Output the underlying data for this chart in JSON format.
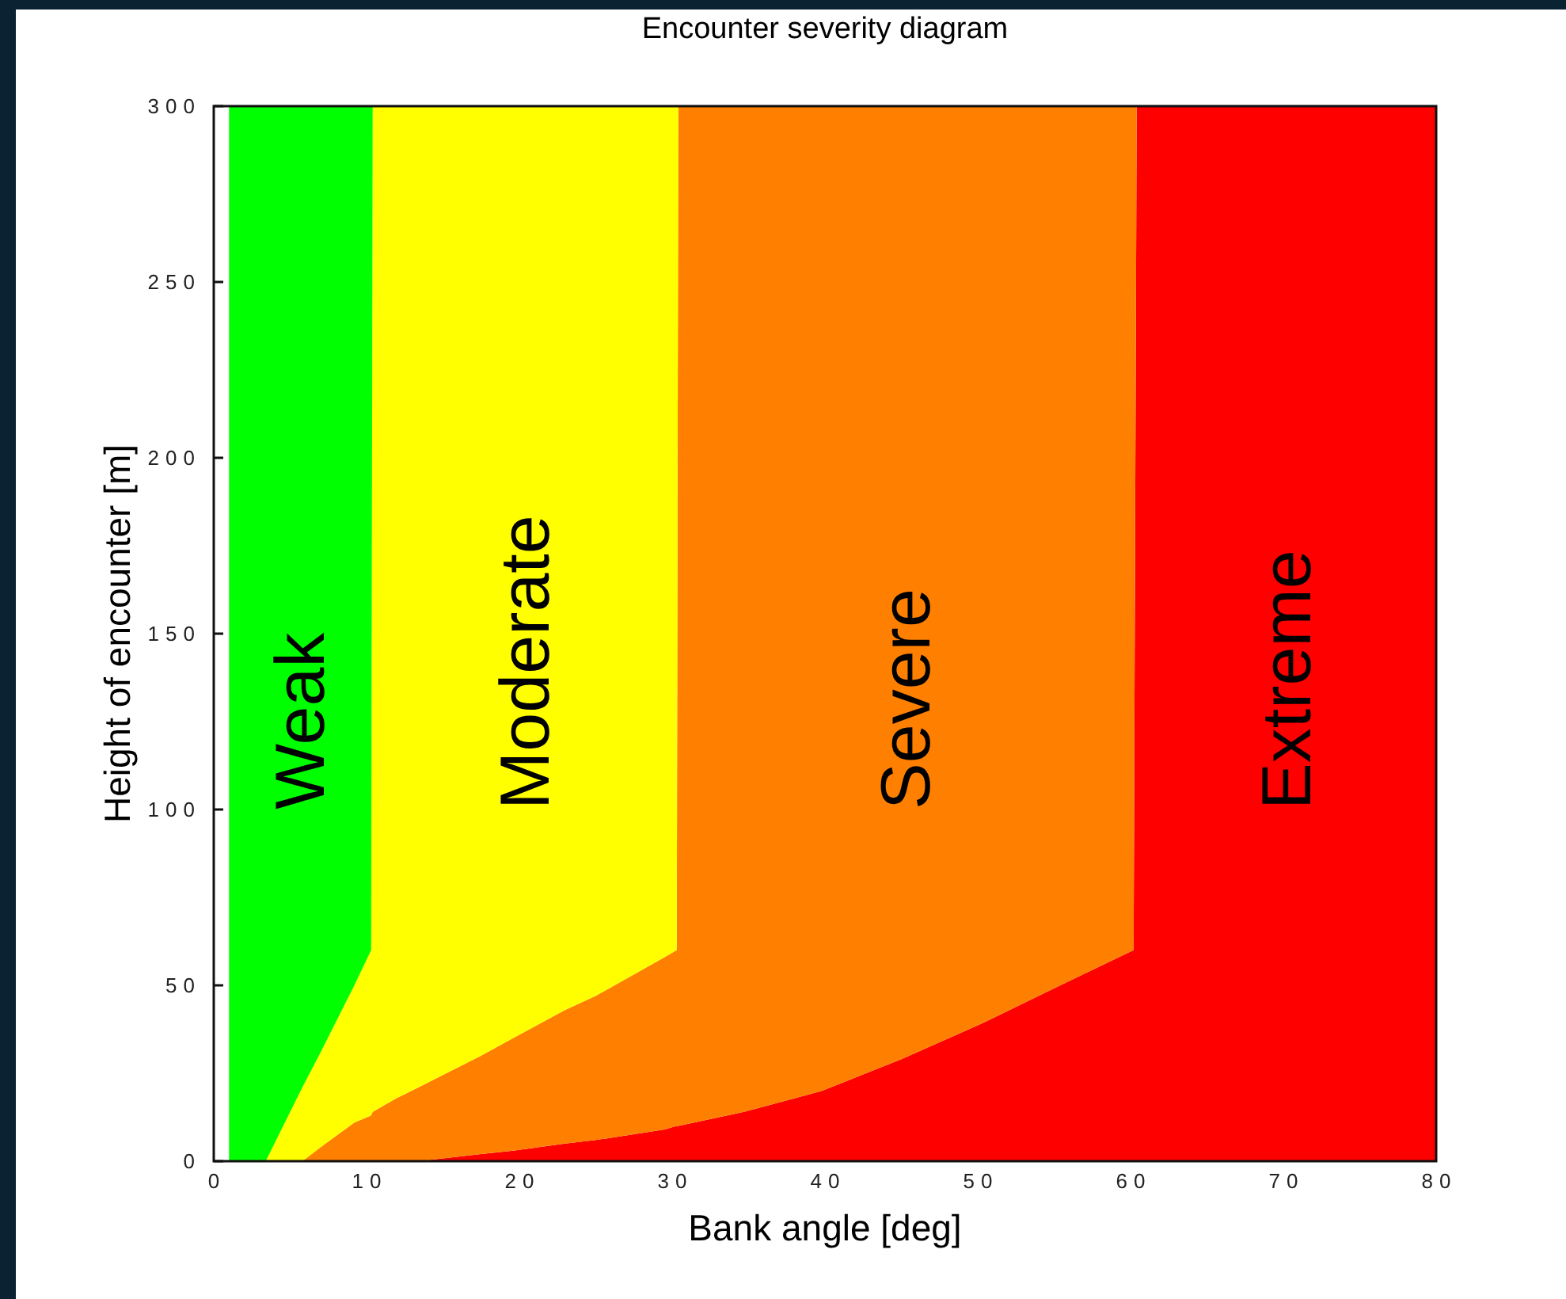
{
  "chart_data": {
    "type": "area",
    "stacked": true,
    "title": "Encounter severity diagram",
    "xlabel": "Bank angle [deg]",
    "ylabel": "Height of encounter [m]",
    "x": [
      1,
      3.4,
      5.8,
      7,
      9.2,
      10.3,
      10.4,
      12,
      13.4,
      17.5,
      19.6,
      23,
      25,
      29.5,
      30.3,
      30.4,
      34.7,
      39.8,
      45,
      50.2,
      55.4,
      60.2,
      60.4,
      80
    ],
    "series": [
      {
        "name": "Extreme",
        "color": "#ff0000",
        "values": [
          null,
          null,
          null,
          null,
          null,
          null,
          null,
          null,
          0,
          2,
          3,
          5,
          6,
          9,
          10,
          10,
          14,
          20,
          29,
          39,
          50,
          60,
          300,
          300
        ]
      },
      {
        "name": "Severe",
        "color": "#ff8000",
        "values": [
          null,
          null,
          0,
          4,
          11,
          13,
          14,
          18,
          21,
          28,
          32,
          38,
          41,
          49,
          50,
          290,
          286,
          280,
          271,
          261,
          250,
          240,
          0,
          null
        ]
      },
      {
        "name": "Moderate",
        "color": "#ffff00",
        "values": [
          null,
          0,
          21,
          27,
          39,
          47,
          286,
          282,
          279,
          270,
          265,
          257,
          253,
          242,
          240,
          0,
          null,
          null,
          null,
          null,
          null,
          null,
          null,
          null
        ]
      },
      {
        "name": "Weak",
        "color": "#00ff00",
        "values": [
          300,
          300,
          279,
          269,
          250,
          240,
          0,
          null,
          null,
          null,
          null,
          null,
          null,
          null,
          null,
          null,
          null,
          null,
          null,
          null,
          null,
          null,
          null,
          null
        ]
      }
    ],
    "xlim": [
      0,
      80
    ],
    "xticks": [
      0,
      10,
      20,
      30,
      40,
      50,
      60,
      70,
      80
    ],
    "ylim": [
      0,
      300
    ],
    "yticks": [
      0,
      50,
      100,
      150,
      200,
      250,
      300
    ]
  }
}
